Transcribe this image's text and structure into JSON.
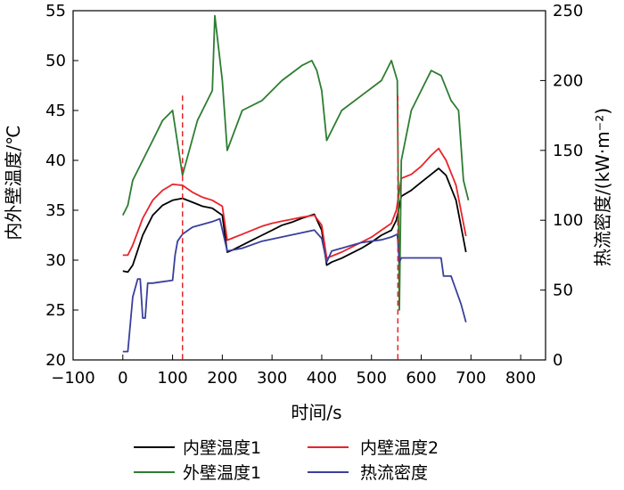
{
  "chart_data": {
    "type": "line",
    "xlabel": "时间/s",
    "ylabel_left": "内外壁温度/℃",
    "ylabel_right": "热流密度/(kW·m⁻²)",
    "x_ticks": [
      "−100",
      "0",
      "100",
      "200",
      "300",
      "400",
      "500",
      "600",
      "700",
      "800"
    ],
    "x_range": [
      -100,
      850
    ],
    "y_left_ticks": [
      "20",
      "25",
      "30",
      "35",
      "40",
      "45",
      "50",
      "55"
    ],
    "y_left_range": [
      20,
      55
    ],
    "y_right_ticks": [
      "0",
      "50",
      "100",
      "150",
      "200",
      "250"
    ],
    "y_right_range": [
      0,
      250
    ],
    "vlines_x": [
      120,
      553
    ],
    "vline_color": "#e8242a",
    "colors": {
      "wall_in_1": "#000000",
      "wall_in_2": "#e8242a",
      "wall_out_1": "#2e7d32",
      "heat_flux": "#3a3f9c"
    },
    "series": [
      {
        "name": "内壁温度1",
        "key": "wall_in_1",
        "axis": "left",
        "x": [
          0,
          10,
          20,
          40,
          60,
          80,
          100,
          120,
          140,
          160,
          180,
          200,
          210,
          220,
          240,
          260,
          280,
          300,
          320,
          340,
          360,
          385,
          400,
          410,
          420,
          440,
          460,
          480,
          500,
          520,
          540,
          550,
          560,
          580,
          600,
          620,
          635,
          650,
          670,
          690
        ],
        "y": [
          28.9,
          28.8,
          29.5,
          32.5,
          34.5,
          35.5,
          36,
          36.2,
          35.8,
          35.4,
          35.2,
          34.5,
          30.8,
          31,
          31.5,
          32,
          32.5,
          33,
          33.5,
          33.8,
          34.2,
          34.6,
          33,
          29.5,
          29.8,
          30.2,
          30.7,
          31.2,
          31.8,
          32.5,
          33,
          34,
          36.4,
          37,
          37.8,
          38.6,
          39.2,
          38.5,
          36,
          30.8
        ]
      },
      {
        "name": "内壁温度2",
        "key": "wall_in_2",
        "axis": "left",
        "x": [
          0,
          10,
          20,
          40,
          60,
          80,
          100,
          120,
          140,
          160,
          180,
          200,
          210,
          220,
          240,
          260,
          280,
          300,
          320,
          340,
          360,
          385,
          400,
          410,
          420,
          440,
          460,
          480,
          500,
          520,
          540,
          550,
          560,
          580,
          600,
          620,
          635,
          650,
          670,
          690
        ],
        "y": [
          30.5,
          30.5,
          31.5,
          34.2,
          36,
          37,
          37.6,
          37.5,
          36.8,
          36.3,
          36,
          35.4,
          32,
          32.2,
          32.6,
          33,
          33.4,
          33.7,
          33.9,
          34.1,
          34.3,
          34.5,
          33.5,
          30.2,
          30.4,
          30.8,
          31.3,
          31.8,
          32.3,
          33,
          33.7,
          35,
          38.2,
          38.6,
          39.4,
          40.5,
          41.2,
          40,
          37.5,
          32.4
        ]
      },
      {
        "name": "外壁温度1",
        "key": "wall_out_1",
        "axis": "left",
        "x": [
          0,
          10,
          20,
          40,
          60,
          80,
          100,
          120,
          150,
          180,
          185,
          200,
          210,
          240,
          280,
          320,
          360,
          380,
          390,
          400,
          410,
          440,
          480,
          520,
          540,
          552,
          556,
          560,
          580,
          600,
          620,
          640,
          660,
          675,
          685,
          695
        ],
        "y": [
          34.5,
          35.5,
          38,
          40,
          42,
          44,
          45,
          38.5,
          44,
          47,
          54.5,
          48,
          41,
          45,
          46,
          48,
          49.5,
          50,
          49,
          47,
          42,
          45,
          46.5,
          48,
          50,
          48,
          25,
          40,
          45,
          47,
          49,
          48.5,
          46,
          45,
          38,
          36
        ]
      },
      {
        "name": "热流密度",
        "key": "heat_flux",
        "axis": "right",
        "x": [
          0,
          10,
          20,
          30,
          35,
          40,
          45,
          50,
          60,
          80,
          100,
          105,
          110,
          120,
          140,
          160,
          180,
          195,
          210,
          240,
          280,
          320,
          360,
          385,
          400,
          410,
          420,
          440,
          460,
          480,
          500,
          520,
          540,
          552,
          556,
          560,
          580,
          600,
          620,
          640,
          645,
          660,
          680,
          690
        ],
        "y": [
          6,
          6,
          45,
          58,
          58,
          30,
          30,
          55,
          55,
          56,
          57,
          75,
          85,
          90,
          95,
          97,
          99,
          101,
          78,
          80,
          85,
          88,
          91,
          93,
          87,
          70,
          78,
          80,
          82,
          84,
          85,
          86,
          88,
          90,
          70,
          73,
          73,
          73,
          73,
          73,
          60,
          60,
          40,
          27
        ]
      }
    ],
    "legend": [
      {
        "label": "内壁温度1",
        "key": "wall_in_1"
      },
      {
        "label": "内壁温度2",
        "key": "wall_in_2"
      },
      {
        "label": "外壁温度1",
        "key": "wall_out_1"
      },
      {
        "label": "热流密度",
        "key": "heat_flux"
      }
    ],
    "legend_position": "bottom"
  }
}
